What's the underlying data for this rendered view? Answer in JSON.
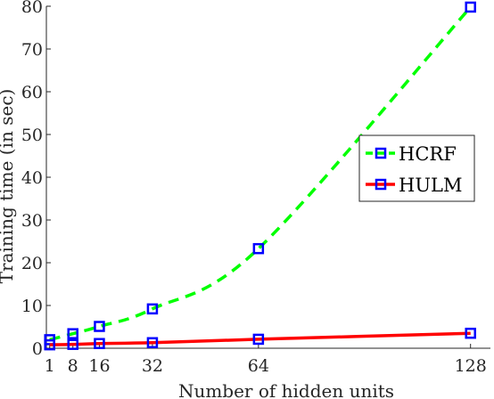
{
  "chart_data": {
    "type": "line",
    "title": "",
    "xlabel": "Number of hidden units",
    "ylabel": "Training time (in sec)",
    "x_ticks": [
      1,
      8,
      16,
      32,
      64,
      128
    ],
    "y_ticks": [
      0,
      10,
      20,
      30,
      40,
      50,
      60,
      70,
      80
    ],
    "xlim": [
      0,
      134
    ],
    "ylim": [
      0,
      80
    ],
    "grid": false,
    "legend_position": "right",
    "series": [
      {
        "name": "HCRF",
        "color": "#00ff00",
        "marker_color": "#0000ff",
        "line_style": "dashed",
        "x": [
          1,
          8,
          16,
          32,
          64,
          128
        ],
        "y": [
          2.0,
          3.4,
          5.1,
          9.2,
          23.3,
          79.8
        ]
      },
      {
        "name": "HULM",
        "color": "#ff0000",
        "marker_color": "#0000ff",
        "line_style": "solid",
        "x": [
          1,
          8,
          16,
          32,
          64,
          128
        ],
        "y": [
          0.8,
          0.9,
          1.1,
          1.3,
          2.1,
          3.5
        ]
      }
    ]
  }
}
